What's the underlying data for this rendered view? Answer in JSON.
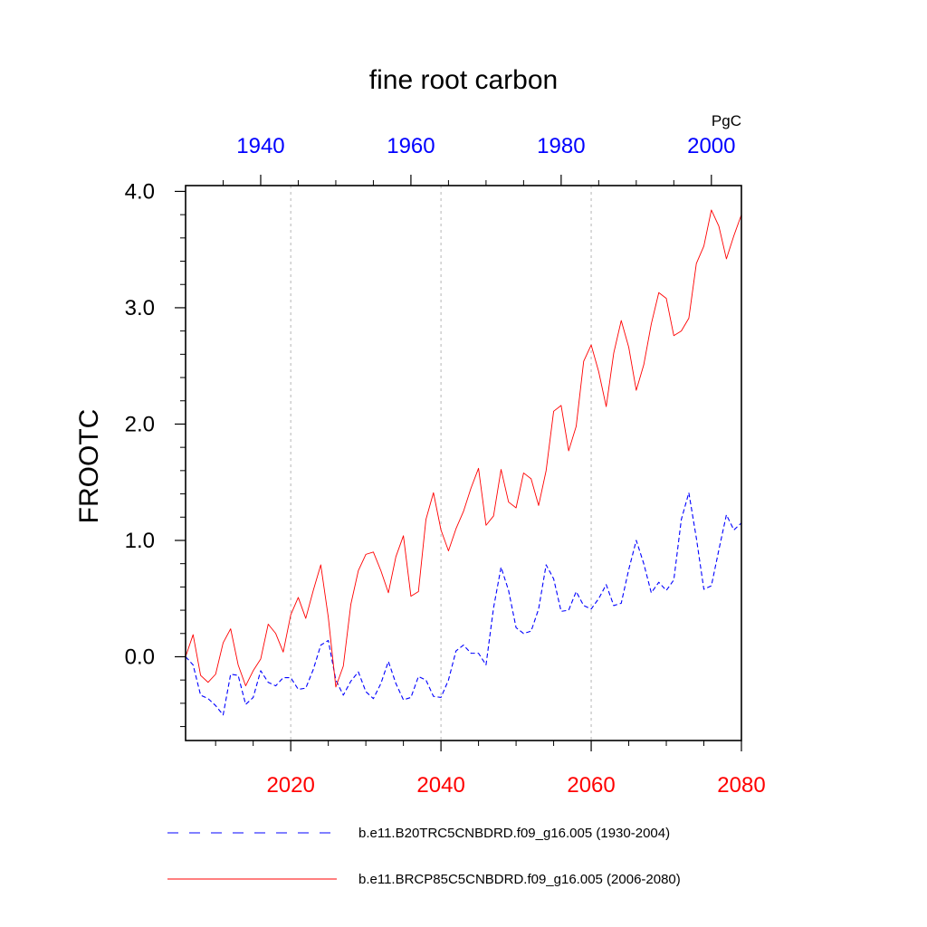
{
  "chart_data": {
    "type": "line",
    "title": "fine root carbon",
    "ylabel": "FROOTC",
    "units": "PgC",
    "ylim": [
      -0.72,
      4.05
    ],
    "yticks": [
      0.0,
      1.0,
      2.0,
      3.0,
      4.0
    ],
    "ytick_labels": [
      "0.0",
      "1.0",
      "2.0",
      "3.0",
      "4.0"
    ],
    "x_bottom": {
      "range": [
        2006,
        2080
      ],
      "ticks": [
        2020,
        2040,
        2060,
        2080
      ],
      "tick_labels": [
        "2020",
        "2040",
        "2060",
        "2080"
      ],
      "color": "#ff0000"
    },
    "x_top": {
      "range": [
        1930,
        2004
      ],
      "ticks": [
        1940,
        1960,
        1980,
        2000
      ],
      "tick_labels": [
        "1940",
        "1960",
        "1980",
        "2000"
      ],
      "color": "#0000ff"
    },
    "vgrid": [
      2020,
      2040,
      2060
    ],
    "series": [
      {
        "name": "b.e11.B20TRC5CNBDRD.f09_g16.005 (1930-2004)",
        "color": "#0000ff",
        "dash": "dashed",
        "axis": "top",
        "x_start": 1930,
        "values": [
          0.0,
          -0.07,
          -0.33,
          -0.36,
          -0.42,
          -0.5,
          -0.15,
          -0.16,
          -0.41,
          -0.35,
          -0.12,
          -0.22,
          -0.25,
          -0.18,
          -0.18,
          -0.28,
          -0.27,
          -0.11,
          0.1,
          0.14,
          -0.2,
          -0.33,
          -0.21,
          -0.13,
          -0.3,
          -0.36,
          -0.23,
          -0.04,
          -0.23,
          -0.37,
          -0.35,
          -0.17,
          -0.2,
          -0.34,
          -0.35,
          -0.2,
          0.05,
          0.1,
          0.03,
          0.03,
          -0.07,
          0.42,
          0.77,
          0.57,
          0.25,
          0.2,
          0.22,
          0.41,
          0.79,
          0.67,
          0.39,
          0.4,
          0.56,
          0.44,
          0.41,
          0.5,
          0.62,
          0.44,
          0.46,
          0.75,
          1.0,
          0.8,
          0.55,
          0.64,
          0.57,
          0.66,
          1.18,
          1.41,
          1.02,
          0.58,
          0.61,
          0.92,
          1.22,
          1.09,
          1.15
        ]
      },
      {
        "name": "b.e11.BRCP85C5CNBDRD.f09_g16.005 (2006-2080)",
        "color": "#ff0000",
        "dash": "solid",
        "axis": "bottom",
        "x_start": 2006,
        "values": [
          0.0,
          0.19,
          -0.16,
          -0.22,
          -0.15,
          0.12,
          0.24,
          -0.07,
          -0.25,
          -0.12,
          -0.02,
          0.28,
          0.2,
          0.04,
          0.36,
          0.51,
          0.33,
          0.57,
          0.79,
          0.34,
          -0.26,
          -0.08,
          0.45,
          0.74,
          0.88,
          0.9,
          0.74,
          0.55,
          0.86,
          1.04,
          0.52,
          0.56,
          1.18,
          1.41,
          1.09,
          0.91,
          1.1,
          1.25,
          1.45,
          1.62,
          1.13,
          1.21,
          1.61,
          1.33,
          1.28,
          1.58,
          1.53,
          1.3,
          1.6,
          2.11,
          2.16,
          1.77,
          1.98,
          2.54,
          2.68,
          2.45,
          2.15,
          2.61,
          2.89,
          2.66,
          2.29,
          2.51,
          2.86,
          3.13,
          3.08,
          2.76,
          2.8,
          2.91,
          3.38,
          3.53,
          3.84,
          3.7,
          3.42,
          3.62,
          3.8
        ]
      }
    ]
  }
}
